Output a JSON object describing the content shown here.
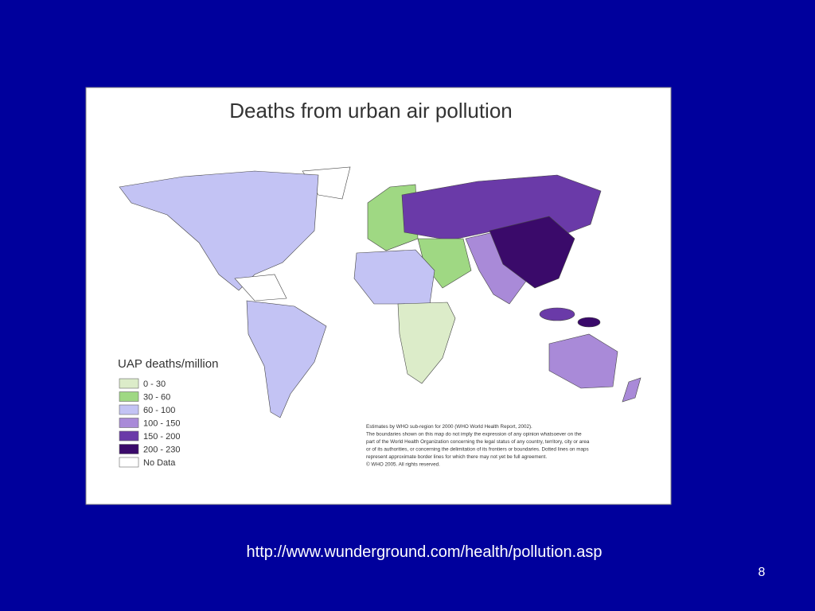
{
  "map": {
    "title": "Deaths from urban air pollution",
    "legend": {
      "title": "UAP deaths/million",
      "items": [
        {
          "label": "0 - 30",
          "color": "#dcecc9"
        },
        {
          "label": "30 - 60",
          "color": "#9fd883"
        },
        {
          "label": "60 - 100",
          "color": "#c3c3f4"
        },
        {
          "label": "100 - 150",
          "color": "#a98ad8"
        },
        {
          "label": "150 - 200",
          "color": "#6a3aa8"
        },
        {
          "label": "200 - 230",
          "color": "#3a0a6a"
        },
        {
          "label": "No Data",
          "color": "#ffffff"
        }
      ]
    },
    "note": [
      "Estimates by WHO sub-region for 2000 (WHO World Health Report, 2002).",
      "The boundaries shown on this map do not imply the expression of any opinion whatsoever on the",
      "part of the World Health Organization concerning the legal status of any country, territory, city or area",
      "or of its authorities, or concerning the delimitation of its frontiers or boundaries. Dotted lines on maps",
      "represent approximate border lines for which there may not yet be full agreement.",
      "© WHO 2005. All rights reserved."
    ]
  },
  "footer": {
    "url": "http://www.wunderground.com/health/pollution.asp",
    "page_number": "8"
  }
}
